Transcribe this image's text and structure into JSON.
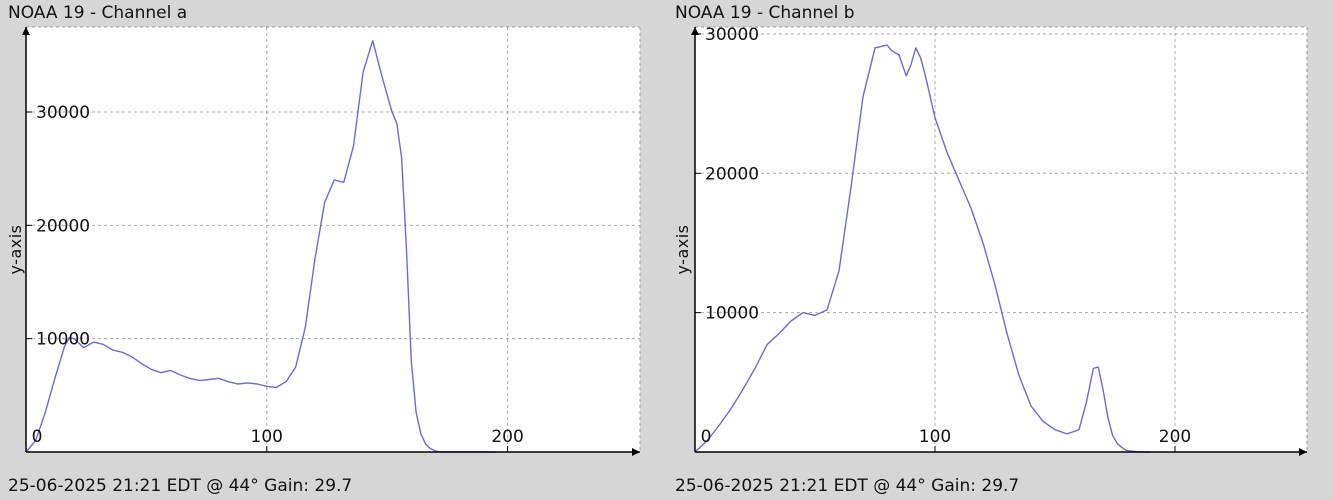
{
  "panels": [
    {
      "title": "NOAA 19 - Channel a",
      "footer": "25-06-2025 21:21 EDT @ 44° Gain: 29.7"
    },
    {
      "title": "NOAA 19 - Channel b",
      "footer": "25-06-2025 21:21 EDT @ 44° Gain: 29.7"
    }
  ],
  "chart_data": [
    {
      "type": "line",
      "title": "NOAA 19 - Channel a",
      "xlabel": "",
      "ylabel": "y-axis",
      "xlim": [
        0,
        255
      ],
      "ylim": [
        0,
        37500
      ],
      "x_ticks": [
        0,
        100,
        200
      ],
      "y_ticks": [
        10000,
        20000,
        30000
      ],
      "grid": true,
      "line_color": "#6a6ad8",
      "series": [
        {
          "x": [
            0,
            4,
            8,
            12,
            16,
            18,
            20,
            24,
            28,
            32,
            36,
            40,
            44,
            48,
            52,
            56,
            60,
            64,
            68,
            72,
            76,
            80,
            84,
            88,
            92,
            96,
            100,
            104,
            108,
            112,
            116,
            120,
            124,
            128,
            132,
            136,
            140,
            144,
            148,
            150,
            152,
            154,
            156,
            158,
            160,
            162,
            164,
            166,
            168,
            170,
            172,
            174,
            176,
            178,
            180,
            184,
            188,
            192,
            195
          ],
          "y": [
            0,
            1000,
            3500,
            6500,
            9300,
            10100,
            10000,
            9200,
            9700,
            9500,
            9000,
            8800,
            8400,
            7800,
            7300,
            7000,
            7200,
            6800,
            6500,
            6300,
            6400,
            6500,
            6200,
            6000,
            6100,
            6000,
            5800,
            5700,
            6200,
            7500,
            11000,
            17000,
            22000,
            24000,
            23800,
            27000,
            33500,
            36300,
            33000,
            31500,
            30000,
            29000,
            26000,
            18000,
            8000,
            3500,
            1600,
            700,
            300,
            100,
            0,
            0,
            0,
            0,
            0,
            0,
            0,
            0,
            0
          ]
        }
      ]
    },
    {
      "type": "line",
      "title": "NOAA 19 - Channel b",
      "xlabel": "",
      "ylabel": "y-axis",
      "xlim": [
        0,
        255
      ],
      "ylim": [
        0,
        30500
      ],
      "x_ticks": [
        0,
        100,
        200
      ],
      "y_ticks": [
        10000,
        20000,
        30000
      ],
      "grid": true,
      "line_color": "#6a6ad8",
      "series": [
        {
          "x": [
            0,
            5,
            10,
            15,
            20,
            25,
            30,
            35,
            40,
            45,
            50,
            55,
            60,
            65,
            70,
            75,
            80,
            82,
            85,
            88,
            90,
            92,
            94,
            96,
            98,
            100,
            105,
            110,
            115,
            120,
            125,
            130,
            135,
            140,
            145,
            150,
            155,
            160,
            163,
            166,
            168,
            170,
            172,
            174,
            176,
            178,
            180,
            185,
            190
          ],
          "y": [
            0,
            800,
            1900,
            3100,
            4500,
            6000,
            7700,
            8500,
            9400,
            10000,
            9800,
            10200,
            13000,
            19000,
            25500,
            29000,
            29200,
            28800,
            28500,
            27000,
            27800,
            29000,
            28300,
            27000,
            25500,
            24000,
            21500,
            19500,
            17500,
            15000,
            12000,
            8500,
            5500,
            3300,
            2200,
            1600,
            1300,
            1600,
            3500,
            6000,
            6100,
            4500,
            2500,
            1200,
            600,
            300,
            100,
            0,
            0
          ]
        }
      ]
    }
  ]
}
